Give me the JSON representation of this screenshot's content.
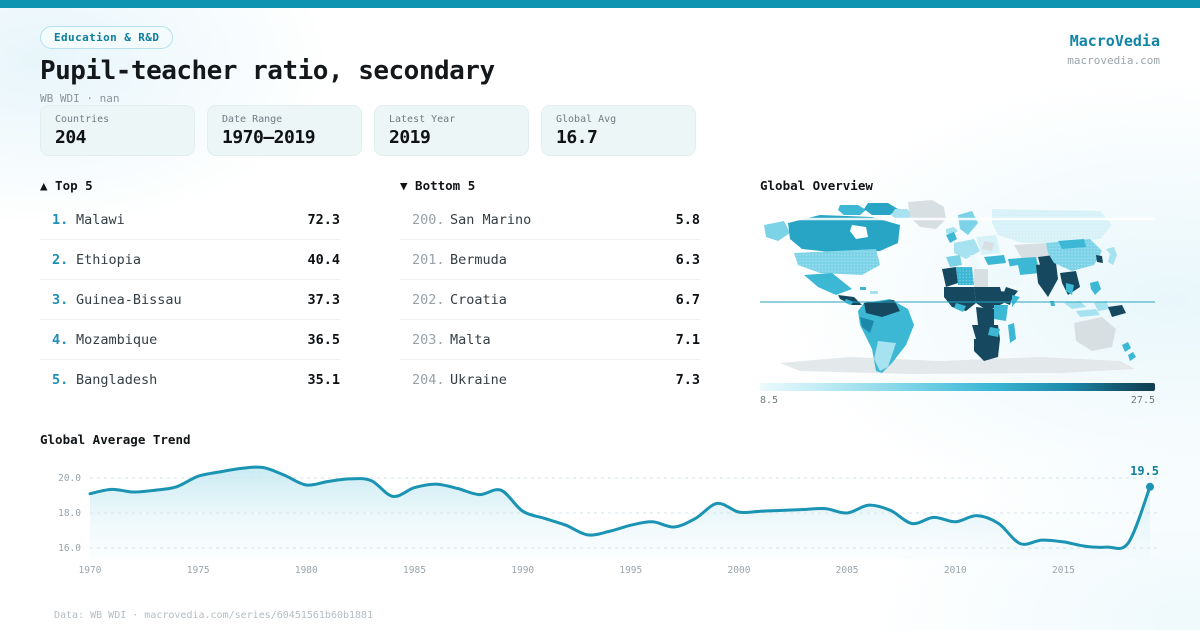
{
  "meta": {
    "badge": "Education & R&D",
    "title": "Pupil-teacher ratio, secondary",
    "subtitle": "WB WDI · nan",
    "brand": "MacroVedia",
    "brand_url": "macrovedia.com",
    "footer": "Data: WB WDI · macrovedia.com/series/60451561b60b1881",
    "accent_color": "#0e93b0"
  },
  "stats": [
    {
      "label": "Countries",
      "value": "204"
    },
    {
      "label": "Date Range",
      "value": "1970—2019"
    },
    {
      "label": "Latest Year",
      "value": "2019"
    },
    {
      "label": "Global Avg",
      "value": "16.7"
    }
  ],
  "lists": {
    "top5": {
      "header": "▲ Top 5",
      "rows": [
        {
          "rank": "1.",
          "name": "Malawi",
          "value": "72.3"
        },
        {
          "rank": "2.",
          "name": "Ethiopia",
          "value": "40.4"
        },
        {
          "rank": "3.",
          "name": "Guinea-Bissau",
          "value": "37.3"
        },
        {
          "rank": "4.",
          "name": "Mozambique",
          "value": "36.5"
        },
        {
          "rank": "5.",
          "name": "Bangladesh",
          "value": "35.1"
        }
      ]
    },
    "bottom5": {
      "header": "▼ Bottom 5",
      "rows": [
        {
          "rank": "200.",
          "name": "San Marino",
          "value": "5.8"
        },
        {
          "rank": "201.",
          "name": "Bermuda",
          "value": "6.3"
        },
        {
          "rank": "202.",
          "name": "Croatia",
          "value": "6.7"
        },
        {
          "rank": "203.",
          "name": "Malta",
          "value": "7.1"
        },
        {
          "rank": "204.",
          "name": "Ukraine",
          "value": "7.3"
        }
      ]
    }
  },
  "map": {
    "title": "Global Overview",
    "legend_min": "8.5",
    "legend_max": "27.5",
    "colors": {
      "nodata": "#d8dfe3",
      "antarctica": "#e3e8ea",
      "vlight": "#d7f1f8",
      "light": "#a7e2f0",
      "mlight": "#7cd3e7",
      "mid": "#3cb8d5",
      "teal": "#28a5c4",
      "deep": "#1d89aa",
      "dark": "#16485f",
      "pale": "#eef9fc",
      "equator": "#2aa3be",
      "ocean": "#ffffff"
    }
  },
  "chart_data": [
    {
      "type": "line",
      "title": "Global Average Trend",
      "x": [
        1970,
        1971,
        1972,
        1973,
        1974,
        1975,
        1976,
        1977,
        1978,
        1979,
        1980,
        1981,
        1982,
        1983,
        1984,
        1985,
        1986,
        1987,
        1988,
        1989,
        1990,
        1991,
        1992,
        1993,
        1994,
        1995,
        1996,
        1997,
        1998,
        1999,
        2000,
        2001,
        2002,
        2003,
        2004,
        2005,
        2006,
        2007,
        2008,
        2009,
        2010,
        2011,
        2012,
        2013,
        2014,
        2015,
        2016,
        2017,
        2018,
        2019
      ],
      "values": [
        19.1,
        19.35,
        19.2,
        19.3,
        19.5,
        20.1,
        20.35,
        20.55,
        20.6,
        20.15,
        19.6,
        19.8,
        19.95,
        19.85,
        18.95,
        19.45,
        19.65,
        19.4,
        19.05,
        19.3,
        18.1,
        17.7,
        17.3,
        16.75,
        16.95,
        17.3,
        17.5,
        17.2,
        17.7,
        18.55,
        18.05,
        18.1,
        18.15,
        18.2,
        18.25,
        18.0,
        18.45,
        18.15,
        17.4,
        17.75,
        17.5,
        17.85,
        17.4,
        16.25,
        16.45,
        16.35,
        16.1,
        16.05,
        16.3,
        19.5
      ],
      "x_ticks": [
        1970,
        1975,
        1980,
        1985,
        1990,
        1995,
        2000,
        2005,
        2010,
        2015
      ],
      "y_gridlines": [
        20.0,
        18.0,
        16.0
      ],
      "ylim": [
        15.4,
        21.5
      ],
      "xlim": [
        1970,
        2019
      ],
      "end_label": "19.5",
      "line_color": "#1b93b2",
      "end_label_color": "#0f7fa2",
      "grid": "horizontal-dashed",
      "legend_position": "none",
      "xlabel": "",
      "ylabel": ""
    },
    {
      "type": "heatmap",
      "subtype": "world-choropleth",
      "title": "Global Overview",
      "colorbar": {
        "min": 8.5,
        "max": 27.5
      },
      "legend_position": "bottom",
      "notes": "Countries shaded from very light cyan (low pupil-teacher ratio) to dark teal (high); gray = no data (Greenland, Libya, Kazakhstan, Australia, Antarctica); teal equator line across map"
    }
  ]
}
